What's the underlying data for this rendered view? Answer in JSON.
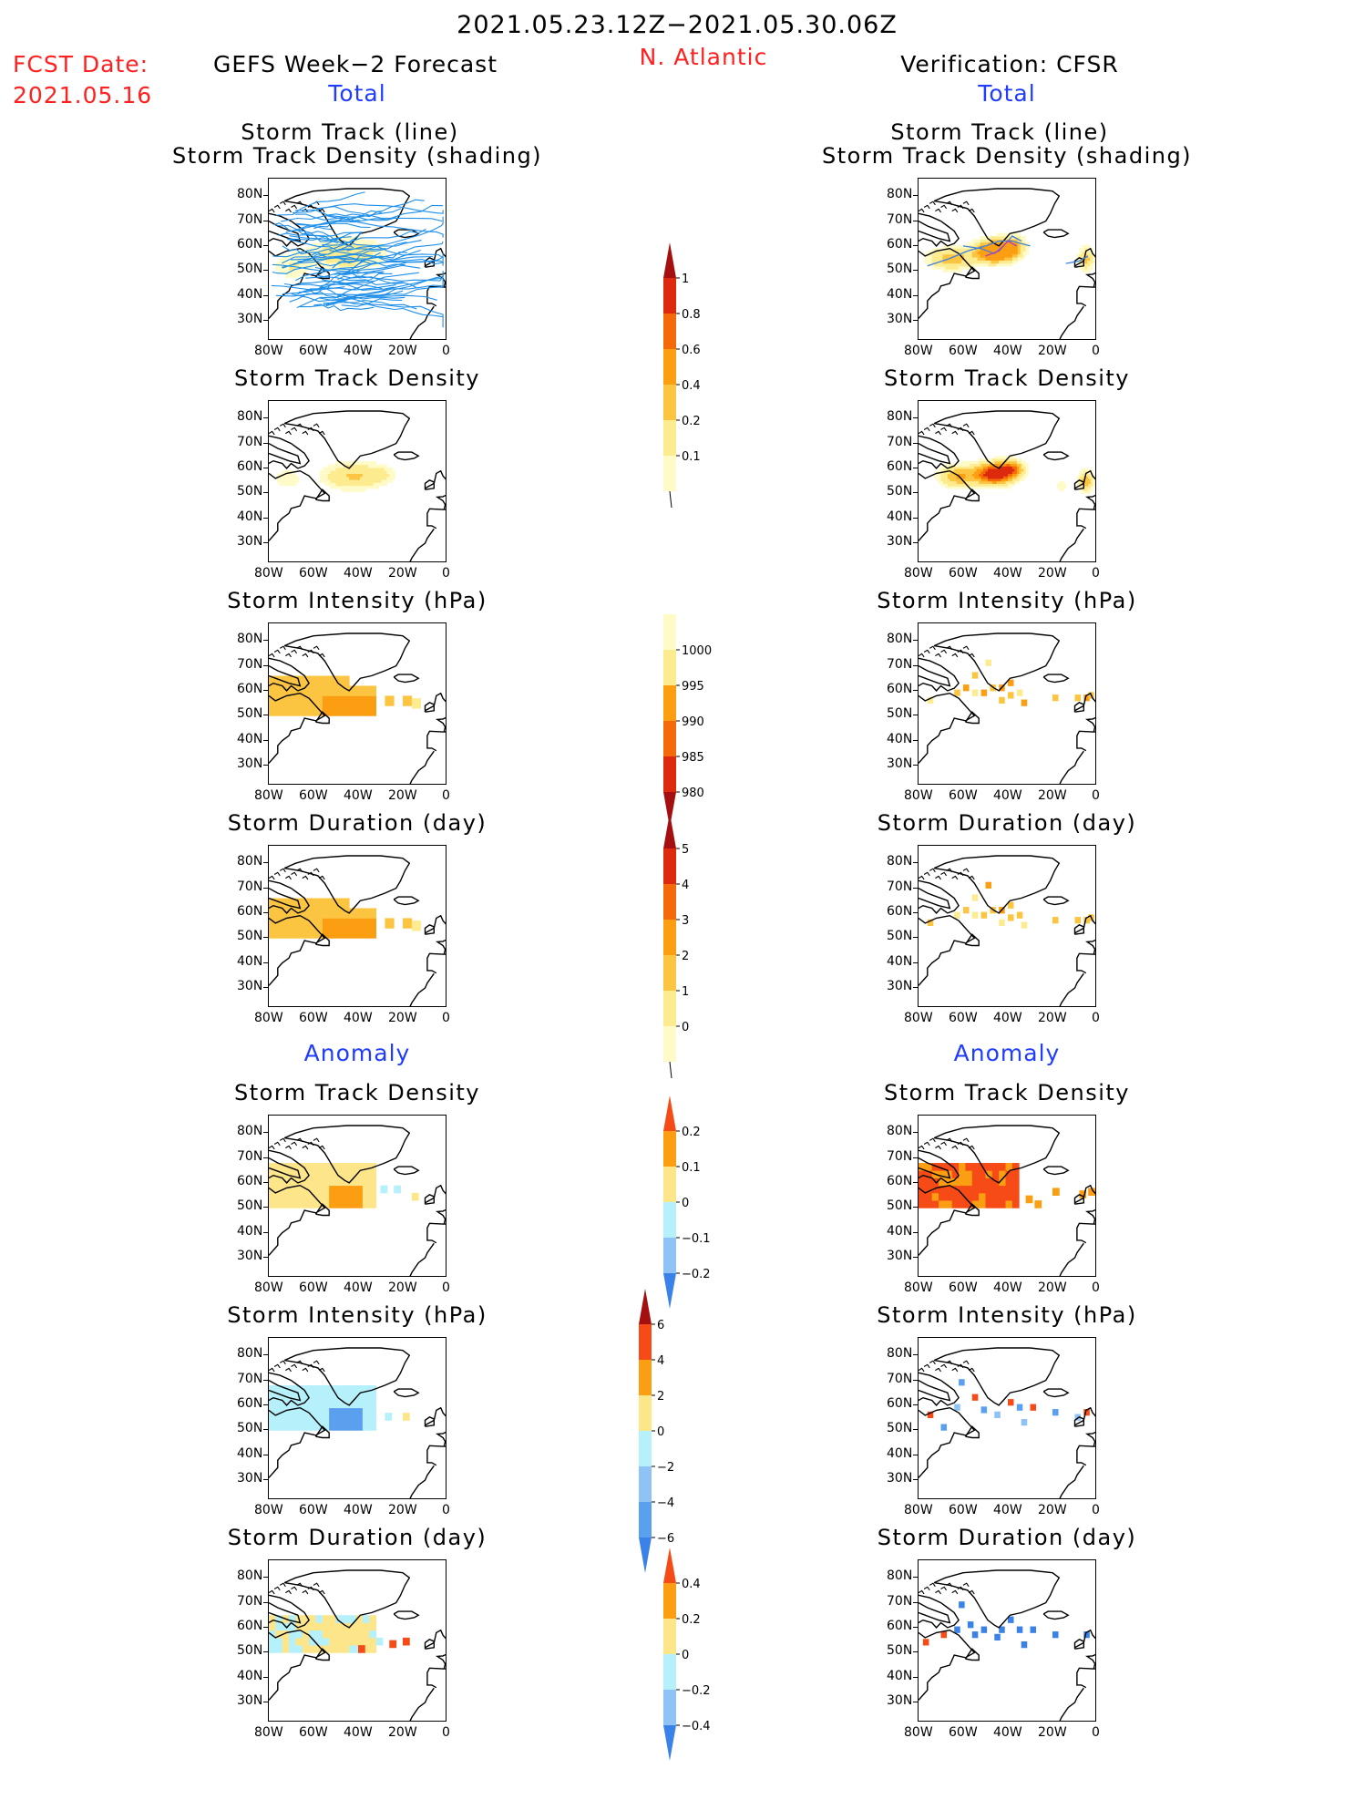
{
  "header": {
    "period": "2021.05.23.12Z−2021.05.30.06Z",
    "fcst_label": "FCST Date:",
    "fcst_date": "2021.05.16",
    "left_title": "GEFS Week−2 Forecast",
    "region": "N. Atlantic",
    "right_title": "Verification: CFSR"
  },
  "sections": {
    "total": "Total",
    "anomaly": "Anomaly"
  },
  "panel_titles": {
    "track_line": "Storm Track (line)",
    "track_density_shading": "Storm Track Density (shading)",
    "track_density": "Storm Track Density",
    "intensity": "Storm Intensity (hPa)",
    "duration": "Storm Duration (day)"
  },
  "axes": {
    "lat_labels": [
      "80N",
      "70N",
      "60N",
      "50N",
      "40N",
      "30N"
    ],
    "lon_labels": [
      "80W",
      "60W",
      "40W",
      "20W",
      "0"
    ]
  },
  "colorbars": [
    {
      "id": "density",
      "labels": [
        "1",
        "0.8",
        "0.6",
        "0.4",
        "0.2",
        "0.1"
      ],
      "colors": [
        "#a50f0f",
        "#dd2a0f",
        "#f46a0a",
        "#fb9e12",
        "#fcc541",
        "#fdeb8f",
        "#fffbc8"
      ]
    },
    {
      "id": "intensity",
      "labels": [
        "1000",
        "995",
        "990",
        "985",
        "980"
      ],
      "colors": [
        "#fffbc8",
        "#fdeb8f",
        "#fb9e12",
        "#f46a0a",
        "#dd2a0f",
        "#a50f0f"
      ]
    },
    {
      "id": "duration",
      "labels": [
        "5",
        "4",
        "3",
        "2",
        "1",
        "0"
      ],
      "colors": [
        "#a50f0f",
        "#dd2a0f",
        "#f46a0a",
        "#fb9e12",
        "#fcc541",
        "#fdeb8f",
        "#fffbc8"
      ]
    },
    {
      "id": "anom_density",
      "labels": [
        "0.2",
        "0.1",
        "0",
        "−0.1",
        "−0.2"
      ],
      "colors": [
        "#f64b16",
        "#fb9e12",
        "#fde58a",
        "#b5f0fb",
        "#8fc2f5",
        "#3b82e8"
      ]
    },
    {
      "id": "anom_intensity",
      "labels": [
        "6",
        "4",
        "2",
        "0",
        "−2",
        "−4",
        "−6"
      ],
      "colors": [
        "#a50f0f",
        "#f64b16",
        "#fb9e12",
        "#fde58a",
        "#b5f0fb",
        "#8fc2f5",
        "#5aa0ee",
        "#3b82e8"
      ]
    },
    {
      "id": "anom_duration",
      "labels": [
        "0.4",
        "0.2",
        "0",
        "−0.2",
        "−0.4"
      ],
      "colors": [
        "#f64b16",
        "#fb9e12",
        "#fde58a",
        "#b5f0fb",
        "#8fc2f5",
        "#3b82e8"
      ]
    }
  ]
}
